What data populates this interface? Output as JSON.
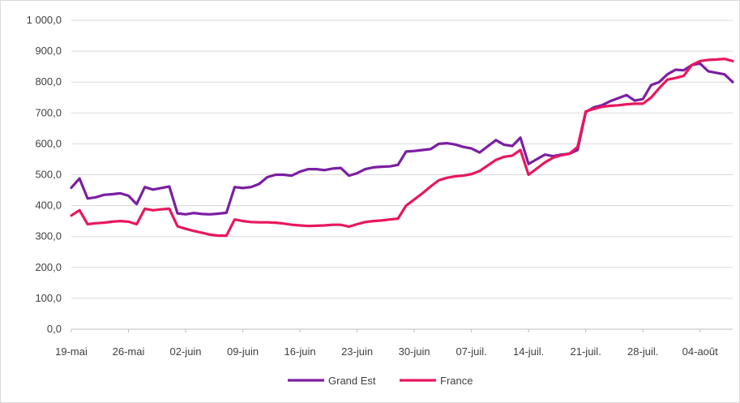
{
  "chart_data": {
    "type": "line",
    "title": "",
    "xlabel": "",
    "ylabel": "",
    "ylim": [
      0,
      1000
    ],
    "y_ticks": [
      "0,0",
      "100,0",
      "200,0",
      "300,0",
      "400,0",
      "500,0",
      "600,0",
      "700,0",
      "800,0",
      "900,0",
      "1 000,0"
    ],
    "x_ticks": [
      "19-mai",
      "26-mai",
      "02-juin",
      "09-juin",
      "16-juin",
      "23-juin",
      "30-juin",
      "07-juil.",
      "14-juil.",
      "21-juil.",
      "28-juil.",
      "04-août"
    ],
    "x": [
      "2020-05-19",
      "2020-05-20",
      "2020-05-21",
      "2020-05-22",
      "2020-05-23",
      "2020-05-24",
      "2020-05-25",
      "2020-05-26",
      "2020-05-27",
      "2020-05-28",
      "2020-05-29",
      "2020-05-30",
      "2020-05-31",
      "2020-06-01",
      "2020-06-02",
      "2020-06-03",
      "2020-06-04",
      "2020-06-05",
      "2020-06-06",
      "2020-06-07",
      "2020-06-08",
      "2020-06-09",
      "2020-06-10",
      "2020-06-11",
      "2020-06-12",
      "2020-06-13",
      "2020-06-14",
      "2020-06-15",
      "2020-06-16",
      "2020-06-17",
      "2020-06-18",
      "2020-06-19",
      "2020-06-20",
      "2020-06-21",
      "2020-06-22",
      "2020-06-23",
      "2020-06-24",
      "2020-06-25",
      "2020-06-26",
      "2020-06-27",
      "2020-06-28",
      "2020-06-29",
      "2020-06-30",
      "2020-07-01",
      "2020-07-02",
      "2020-07-03",
      "2020-07-04",
      "2020-07-05",
      "2020-07-06",
      "2020-07-07",
      "2020-07-08",
      "2020-07-09",
      "2020-07-10",
      "2020-07-11",
      "2020-07-12",
      "2020-07-13",
      "2020-07-14",
      "2020-07-15",
      "2020-07-16",
      "2020-07-17",
      "2020-07-18",
      "2020-07-19",
      "2020-07-20",
      "2020-07-21",
      "2020-07-22",
      "2020-07-23",
      "2020-07-24",
      "2020-07-25",
      "2020-07-26",
      "2020-07-27",
      "2020-07-28",
      "2020-07-29",
      "2020-07-30",
      "2020-07-31",
      "2020-08-01",
      "2020-08-02",
      "2020-08-03",
      "2020-08-04",
      "2020-08-05",
      "2020-08-06",
      "2020-08-07",
      "2020-08-08"
    ],
    "series": [
      {
        "name": "Grand Est",
        "color": "#7B1FA2",
        "values": [
          458,
          488,
          423,
          427,
          435,
          437,
          440,
          432,
          405,
          460,
          452,
          457,
          462,
          375,
          372,
          376,
          373,
          372,
          374,
          377,
          460,
          457,
          460,
          470,
          492,
          500,
          500,
          497,
          510,
          518,
          518,
          515,
          520,
          522,
          497,
          505,
          518,
          524,
          526,
          527,
          532,
          575,
          577,
          580,
          583,
          600,
          602,
          598,
          590,
          585,
          572,
          592,
          612,
          597,
          593,
          620,
          535,
          550,
          565,
          560,
          565,
          568,
          580,
          703,
          718,
          725,
          738,
          748,
          758,
          740,
          745,
          790,
          800,
          825,
          840,
          838,
          855,
          860,
          835,
          830,
          825,
          800
        ]
      },
      {
        "name": "France",
        "color": "#E8175D",
        "values": [
          368,
          385,
          340,
          343,
          345,
          348,
          350,
          348,
          340,
          390,
          385,
          388,
          390,
          333,
          325,
          318,
          312,
          306,
          303,
          303,
          355,
          350,
          347,
          346,
          346,
          345,
          342,
          338,
          336,
          334,
          335,
          336,
          338,
          338,
          332,
          340,
          347,
          350,
          352,
          355,
          358,
          400,
          420,
          440,
          462,
          482,
          490,
          495,
          497,
          502,
          512,
          530,
          548,
          558,
          562,
          580,
          500,
          520,
          540,
          555,
          563,
          568,
          590,
          705,
          713,
          720,
          723,
          725,
          728,
          730,
          730,
          750,
          780,
          808,
          813,
          820,
          855,
          868,
          872,
          873,
          875,
          868
        ]
      }
    ],
    "legend": {
      "position": "bottom"
    },
    "grid": true
  }
}
